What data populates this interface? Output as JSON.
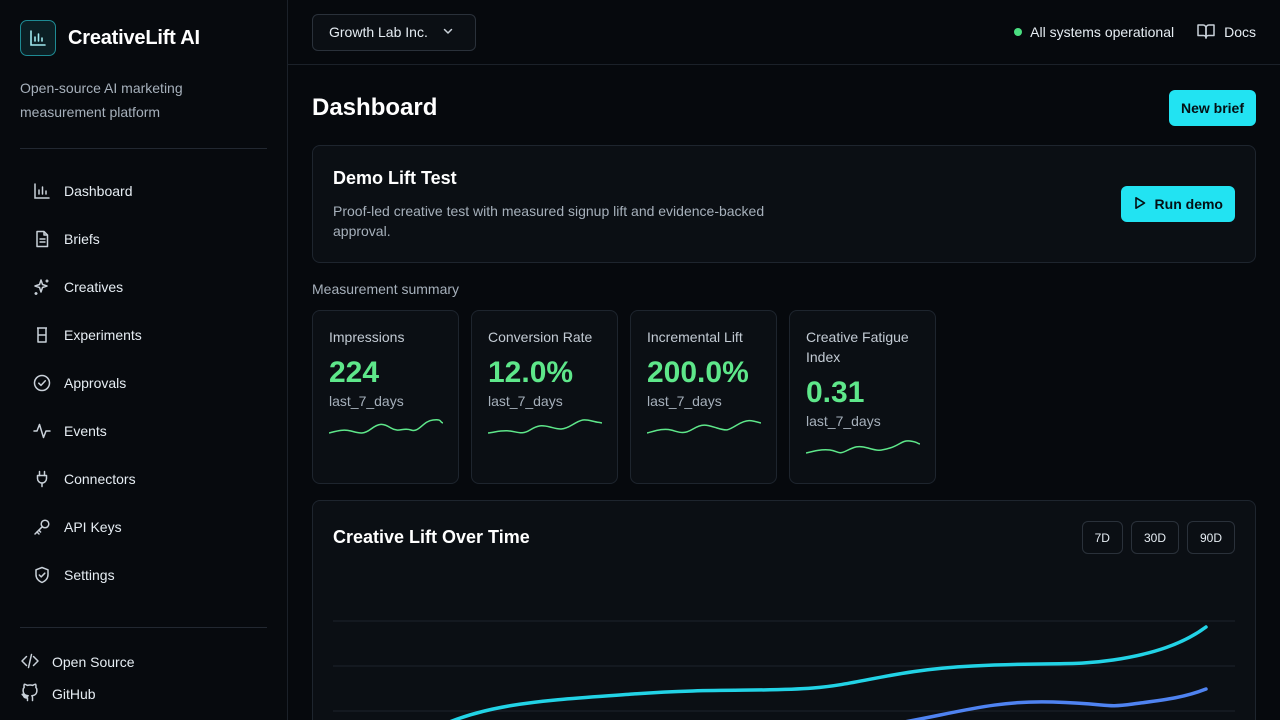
{
  "brand": {
    "name": "CreativeLift AI",
    "tagline": "Open-source AI marketing measurement platform",
    "icon": "bar-chart-icon"
  },
  "sidebar": {
    "items": [
      {
        "label": "Dashboard",
        "icon": "bar-chart-icon"
      },
      {
        "label": "Briefs",
        "icon": "document-icon"
      },
      {
        "label": "Creatives",
        "icon": "sparkles-icon"
      },
      {
        "label": "Experiments",
        "icon": "beaker-icon"
      },
      {
        "label": "Approvals",
        "icon": "check-circle-icon"
      },
      {
        "label": "Events",
        "icon": "activity-icon"
      },
      {
        "label": "Connectors",
        "icon": "plug-icon"
      },
      {
        "label": "API Keys",
        "icon": "key-icon"
      },
      {
        "label": "Settings",
        "icon": "shield-check-icon"
      }
    ],
    "footer": [
      {
        "label": "Open Source",
        "icon": "code-icon"
      },
      {
        "label": "GitHub",
        "icon": "github-icon"
      }
    ]
  },
  "topbar": {
    "org": "Growth Lab Inc.",
    "status": "All systems operational",
    "docs": "Docs"
  },
  "page": {
    "title": "Dashboard",
    "new_brief": "New brief"
  },
  "demo": {
    "title": "Demo Lift Test",
    "description": "Proof-led creative test with measured signup lift and evidence-backed approval.",
    "run_label": "Run demo"
  },
  "summary": {
    "label": "Measurement summary",
    "metrics": [
      {
        "label": "Impressions",
        "value": "224",
        "period": "last_7_days"
      },
      {
        "label": "Conversion Rate",
        "value": "12.0%",
        "period": "last_7_days"
      },
      {
        "label": "Incremental Lift",
        "value": "200.0%",
        "period": "last_7_days"
      },
      {
        "label": "Creative Fatigue Index",
        "value": "0.31",
        "period": "last_7_days"
      }
    ]
  },
  "chart": {
    "title": "Creative Lift Over Time",
    "ranges": [
      "7D",
      "30D",
      "90D"
    ]
  },
  "colors": {
    "accent": "#22e3f2",
    "positive": "#5ee78a",
    "series_secondary": "#4f83f1"
  }
}
